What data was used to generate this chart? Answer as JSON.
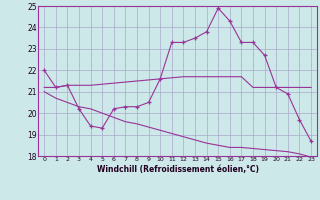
{
  "xlabel": "Windchill (Refroidissement éolien,°C)",
  "bg_color": "#cce8e8",
  "grid_color": "#aaaacc",
  "line_color": "#993399",
  "xlim_min": -0.5,
  "xlim_max": 23.5,
  "ylim_min": 18,
  "ylim_max": 25,
  "xticks": [
    0,
    1,
    2,
    3,
    4,
    5,
    6,
    7,
    8,
    9,
    10,
    11,
    12,
    13,
    14,
    15,
    16,
    17,
    18,
    19,
    20,
    21,
    22,
    23
  ],
  "yticks": [
    18,
    19,
    20,
    21,
    22,
    23,
    24,
    25
  ],
  "line1_x": [
    0,
    1,
    2,
    3,
    4,
    5,
    6,
    7,
    8,
    9,
    10,
    11,
    12,
    13,
    14,
    15,
    16,
    17,
    18,
    19,
    20,
    21,
    22,
    23
  ],
  "line1_y": [
    22.0,
    21.2,
    21.3,
    20.2,
    19.4,
    19.3,
    20.2,
    20.3,
    20.3,
    20.5,
    21.6,
    23.3,
    23.3,
    23.5,
    23.8,
    24.9,
    24.3,
    23.3,
    23.3,
    22.7,
    21.2,
    20.9,
    19.7,
    18.7
  ],
  "line2_x": [
    0,
    1,
    2,
    3,
    4,
    5,
    6,
    7,
    8,
    9,
    10,
    11,
    12,
    13,
    14,
    15,
    16,
    17,
    18,
    19,
    20,
    21,
    22,
    23
  ],
  "line2_y": [
    21.2,
    21.2,
    21.3,
    21.3,
    21.3,
    21.35,
    21.4,
    21.45,
    21.5,
    21.55,
    21.6,
    21.65,
    21.7,
    21.7,
    21.7,
    21.7,
    21.7,
    21.7,
    21.2,
    21.2,
    21.2,
    21.2,
    21.2,
    21.2
  ],
  "line3_x": [
    0,
    1,
    2,
    3,
    4,
    5,
    6,
    7,
    8,
    9,
    10,
    11,
    12,
    13,
    14,
    15,
    16,
    17,
    18,
    19,
    20,
    21,
    22,
    23
  ],
  "line3_y": [
    21.0,
    20.7,
    20.5,
    20.3,
    20.2,
    20.0,
    19.8,
    19.6,
    19.5,
    19.35,
    19.2,
    19.05,
    18.9,
    18.75,
    18.6,
    18.5,
    18.4,
    18.4,
    18.35,
    18.3,
    18.25,
    18.2,
    18.1,
    17.95
  ]
}
